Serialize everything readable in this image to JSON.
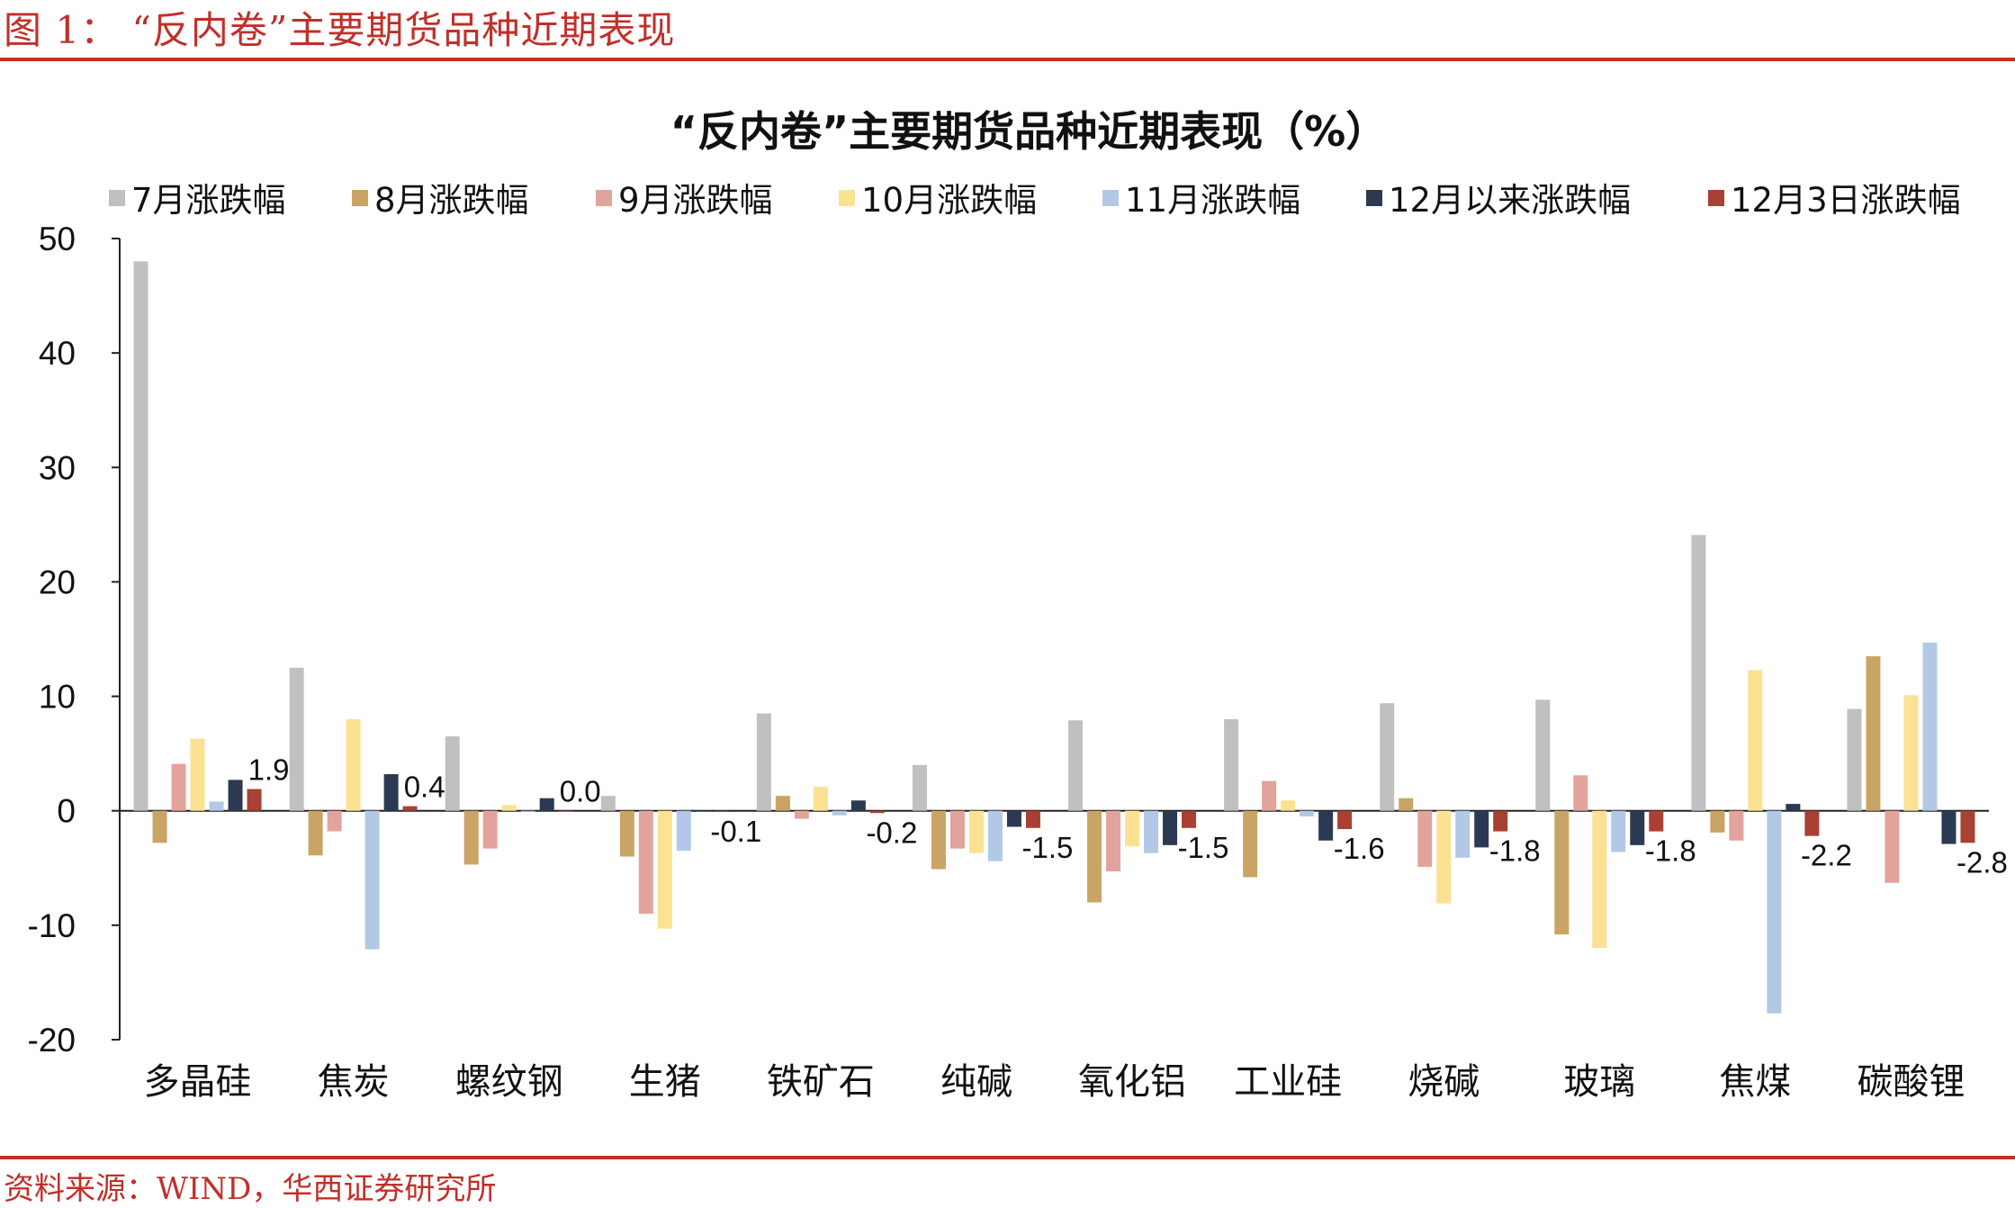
{
  "header": {
    "figure_label": "图 1：  “反内卷”主要期货品种近期表现"
  },
  "footer": {
    "source": "资料来源：WIND，华西证券研究所"
  },
  "colors": {
    "brand_red": "#c0302a",
    "axis": "#222222"
  },
  "chart_data": {
    "type": "bar",
    "title": "“反内卷”主要期货品种近期表现（%）",
    "xlabel": "",
    "ylabel": "",
    "ylim": [
      -20,
      50
    ],
    "yticks": [
      50,
      40,
      30,
      20,
      10,
      0,
      -10,
      -20
    ],
    "grid": false,
    "legend_position": "top",
    "categories": [
      "多晶硅",
      "焦炭",
      "螺纹钢",
      "生猪",
      "铁矿石",
      "纯碱",
      "氧化铝",
      "工业硅",
      "烧碱",
      "玻璃",
      "焦煤",
      "碳酸锂"
    ],
    "series": [
      {
        "name": "7月涨跌幅",
        "color": "#c0c0c0",
        "values": [
          48.0,
          12.5,
          6.5,
          1.3,
          8.5,
          4.0,
          7.9,
          8.0,
          9.4,
          9.7,
          24.1,
          8.9
        ]
      },
      {
        "name": "8月涨跌幅",
        "color": "#c9a464",
        "values": [
          -2.8,
          -3.9,
          -4.7,
          -4.0,
          1.3,
          -5.1,
          -8.0,
          -5.8,
          1.1,
          -10.8,
          -1.9,
          13.5
        ]
      },
      {
        "name": "9月涨跌幅",
        "color": "#e3a39d",
        "values": [
          4.1,
          -1.8,
          -3.3,
          -9.0,
          -0.7,
          -3.3,
          -5.3,
          2.6,
          -4.9,
          3.1,
          -2.6,
          -6.3
        ]
      },
      {
        "name": "10月涨跌幅",
        "color": "#fbe293",
        "values": [
          6.3,
          8.0,
          0.5,
          -10.3,
          2.1,
          -3.7,
          -3.1,
          0.9,
          -8.1,
          -12.0,
          12.3,
          10.1
        ]
      },
      {
        "name": "11月涨跌幅",
        "color": "#b3c8e6",
        "values": [
          0.8,
          -12.1,
          0.0,
          -3.5,
          -0.4,
          -4.4,
          -3.7,
          -0.5,
          -4.1,
          -3.6,
          -17.7,
          14.7
        ]
      },
      {
        "name": "12月以来涨跌幅",
        "color": "#2b3a52",
        "values": [
          2.7,
          3.2,
          1.1,
          0.0,
          0.9,
          -1.4,
          -3.0,
          -2.6,
          -3.2,
          -3.0,
          0.6,
          -2.9
        ]
      },
      {
        "name": "12月3日涨跌幅",
        "color": "#a84034",
        "values": [
          1.9,
          0.4,
          0.0,
          -0.1,
          -0.2,
          -1.5,
          -1.5,
          -1.6,
          -1.8,
          -1.8,
          -2.2,
          -2.8
        ],
        "data_labels": [
          "1.9",
          "0.4",
          "0.0",
          "-0.1",
          "-0.2",
          "-1.5",
          "-1.5",
          "-1.6",
          "-1.8",
          "-1.8",
          "-2.2",
          "-2.8"
        ]
      }
    ]
  }
}
